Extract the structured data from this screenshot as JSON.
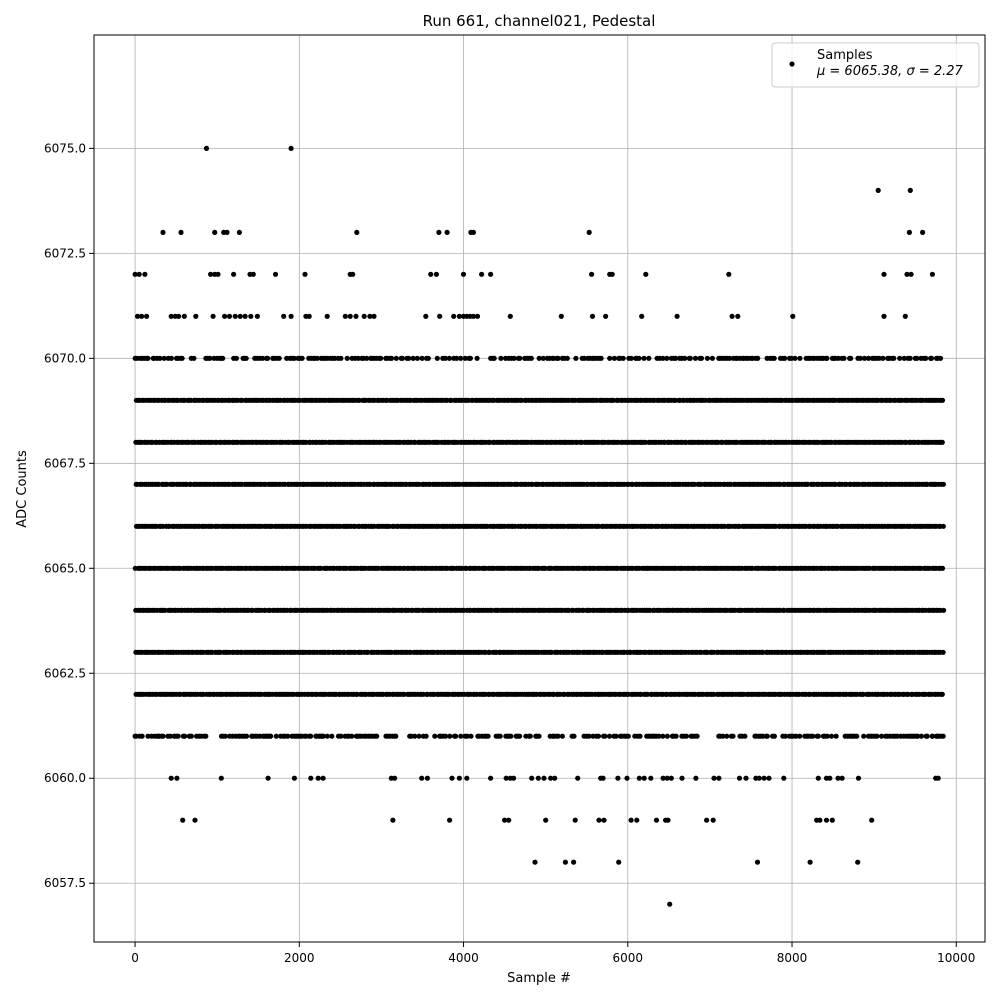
{
  "chart_data": {
    "type": "scatter",
    "title": "Run 661, channel021, Pedestal",
    "xlabel": "Sample #",
    "ylabel": "ADC Counts",
    "xlim": [
      -500,
      10350
    ],
    "ylim": [
      6056.1,
      6077.7
    ],
    "grid": true,
    "legend_position": "top-right",
    "x_ticks": [
      0,
      2000,
      4000,
      6000,
      8000,
      10000
    ],
    "x_tick_labels": [
      "0",
      "2000",
      "4000",
      "6000",
      "8000",
      "10000"
    ],
    "y_ticks": [
      6057.5,
      6060.0,
      6062.5,
      6065.0,
      6067.5,
      6070.0,
      6072.5,
      6075.0
    ],
    "y_tick_labels": [
      "6057.5",
      "6060.0",
      "6062.5",
      "6065.0",
      "6067.5",
      "6070.0",
      "6072.5",
      "6075.0"
    ],
    "series": [
      {
        "name": "Samples",
        "legend_stats": "μ = 6065.38, σ = 2.27",
        "color": "#000000",
        "marker": "circle",
        "n_samples": 9850,
        "dense_levels": [
          6061,
          6062,
          6063,
          6064,
          6065,
          6066,
          6067,
          6068,
          6069,
          6070
        ],
        "points": [
          [
            870,
            6075
          ],
          [
            1900,
            6075
          ],
          [
            9050,
            6074
          ],
          [
            9440,
            6074
          ],
          [
            340,
            6073
          ],
          [
            560,
            6073
          ],
          [
            970,
            6073
          ],
          [
            1080,
            6073
          ],
          [
            1120,
            6073
          ],
          [
            1270,
            6073
          ],
          [
            2700,
            6073
          ],
          [
            3700,
            6073
          ],
          [
            3800,
            6073
          ],
          [
            4090,
            6073
          ],
          [
            4120,
            6073
          ],
          [
            5530,
            6073
          ],
          [
            9430,
            6073
          ],
          [
            9590,
            6073
          ],
          [
            0,
            6072
          ],
          [
            50,
            6072
          ],
          [
            120,
            6072
          ],
          [
            920,
            6072
          ],
          [
            970,
            6072
          ],
          [
            1010,
            6072
          ],
          [
            1200,
            6072
          ],
          [
            1400,
            6072
          ],
          [
            1440,
            6072
          ],
          [
            1710,
            6072
          ],
          [
            2070,
            6072
          ],
          [
            2620,
            6072
          ],
          [
            2650,
            6072
          ],
          [
            3600,
            6072
          ],
          [
            3670,
            6072
          ],
          [
            4000,
            6072
          ],
          [
            4220,
            6072
          ],
          [
            4330,
            6072
          ],
          [
            5560,
            6072
          ],
          [
            5780,
            6072
          ],
          [
            5810,
            6072
          ],
          [
            6220,
            6072
          ],
          [
            7230,
            6072
          ],
          [
            9120,
            6072
          ],
          [
            9400,
            6072
          ],
          [
            9450,
            6072
          ],
          [
            9710,
            6072
          ],
          [
            30,
            6071
          ],
          [
            80,
            6071
          ],
          [
            140,
            6071
          ],
          [
            440,
            6071
          ],
          [
            490,
            6071
          ],
          [
            530,
            6071
          ],
          [
            600,
            6071
          ],
          [
            740,
            6071
          ],
          [
            950,
            6071
          ],
          [
            1090,
            6071
          ],
          [
            1150,
            6071
          ],
          [
            1220,
            6071
          ],
          [
            1280,
            6071
          ],
          [
            1340,
            6071
          ],
          [
            1410,
            6071
          ],
          [
            1490,
            6071
          ],
          [
            1810,
            6071
          ],
          [
            1900,
            6071
          ],
          [
            2080,
            6071
          ],
          [
            2120,
            6071
          ],
          [
            2340,
            6071
          ],
          [
            2560,
            6071
          ],
          [
            2620,
            6071
          ],
          [
            2690,
            6071
          ],
          [
            2790,
            6071
          ],
          [
            2860,
            6071
          ],
          [
            2910,
            6071
          ],
          [
            3540,
            6071
          ],
          [
            3710,
            6071
          ],
          [
            3880,
            6071
          ],
          [
            3950,
            6071
          ],
          [
            4000,
            6071
          ],
          [
            4040,
            6071
          ],
          [
            4080,
            6071
          ],
          [
            4120,
            6071
          ],
          [
            4170,
            6071
          ],
          [
            4570,
            6071
          ],
          [
            5190,
            6071
          ],
          [
            5570,
            6071
          ],
          [
            5730,
            6071
          ],
          [
            6170,
            6071
          ],
          [
            6600,
            6071
          ],
          [
            7270,
            6071
          ],
          [
            7340,
            6071
          ],
          [
            8010,
            6071
          ],
          [
            9120,
            6071
          ],
          [
            9380,
            6071
          ],
          [
            0,
            6061
          ],
          [
            200,
            6061
          ],
          [
            290,
            6061
          ],
          [
            430,
            6061
          ],
          [
            480,
            6061
          ],
          [
            660,
            6061
          ],
          [
            750,
            6061
          ],
          [
            1570,
            6061
          ],
          [
            1610,
            6061
          ],
          [
            1650,
            6061
          ],
          [
            1860,
            6061
          ],
          [
            2070,
            6061
          ],
          [
            2210,
            6061
          ],
          [
            2250,
            6061
          ],
          [
            2280,
            6061
          ],
          [
            9530,
            6061
          ],
          [
            9710,
            6061
          ],
          [
            9770,
            6061
          ],
          [
            9810,
            6061
          ],
          [
            440,
            6060
          ],
          [
            510,
            6060
          ],
          [
            1050,
            6060
          ],
          [
            1620,
            6060
          ],
          [
            1940,
            6060
          ],
          [
            2140,
            6060
          ],
          [
            2230,
            6060
          ],
          [
            2290,
            6060
          ],
          [
            3120,
            6060
          ],
          [
            3160,
            6060
          ],
          [
            3490,
            6060
          ],
          [
            3560,
            6060
          ],
          [
            3860,
            6060
          ],
          [
            3950,
            6060
          ],
          [
            4040,
            6060
          ],
          [
            4330,
            6060
          ],
          [
            4520,
            6060
          ],
          [
            4570,
            6060
          ],
          [
            4610,
            6060
          ],
          [
            4830,
            6060
          ],
          [
            4910,
            6060
          ],
          [
            4980,
            6060
          ],
          [
            5060,
            6060
          ],
          [
            5110,
            6060
          ],
          [
            5390,
            6060
          ],
          [
            5670,
            6060
          ],
          [
            5700,
            6060
          ],
          [
            5880,
            6060
          ],
          [
            5990,
            6060
          ],
          [
            6140,
            6060
          ],
          [
            6200,
            6060
          ],
          [
            6280,
            6060
          ],
          [
            6430,
            6060
          ],
          [
            6480,
            6060
          ],
          [
            6530,
            6060
          ],
          [
            6660,
            6060
          ],
          [
            6830,
            6060
          ],
          [
            7050,
            6060
          ],
          [
            7110,
            6060
          ],
          [
            7360,
            6060
          ],
          [
            7440,
            6060
          ],
          [
            7560,
            6060
          ],
          [
            7600,
            6060
          ],
          [
            7660,
            6060
          ],
          [
            7720,
            6060
          ],
          [
            7900,
            6060
          ],
          [
            8320,
            6060
          ],
          [
            8420,
            6060
          ],
          [
            8460,
            6060
          ],
          [
            8560,
            6060
          ],
          [
            8610,
            6060
          ],
          [
            8810,
            6060
          ],
          [
            9750,
            6060
          ],
          [
            9780,
            6060
          ],
          [
            580,
            6059
          ],
          [
            730,
            6059
          ],
          [
            3140,
            6059
          ],
          [
            3830,
            6059
          ],
          [
            4500,
            6059
          ],
          [
            4550,
            6059
          ],
          [
            5000,
            6059
          ],
          [
            5360,
            6059
          ],
          [
            5650,
            6059
          ],
          [
            5710,
            6059
          ],
          [
            6040,
            6059
          ],
          [
            6110,
            6059
          ],
          [
            6350,
            6059
          ],
          [
            6460,
            6059
          ],
          [
            6490,
            6059
          ],
          [
            6960,
            6059
          ],
          [
            7040,
            6059
          ],
          [
            8300,
            6059
          ],
          [
            8340,
            6059
          ],
          [
            8420,
            6059
          ],
          [
            8490,
            6059
          ],
          [
            8970,
            6059
          ],
          [
            4870,
            6058
          ],
          [
            5240,
            6058
          ],
          [
            5340,
            6058
          ],
          [
            5890,
            6058
          ],
          [
            7580,
            6058
          ],
          [
            8220,
            6058
          ],
          [
            8800,
            6058
          ],
          [
            6510,
            6057
          ]
        ]
      }
    ]
  }
}
